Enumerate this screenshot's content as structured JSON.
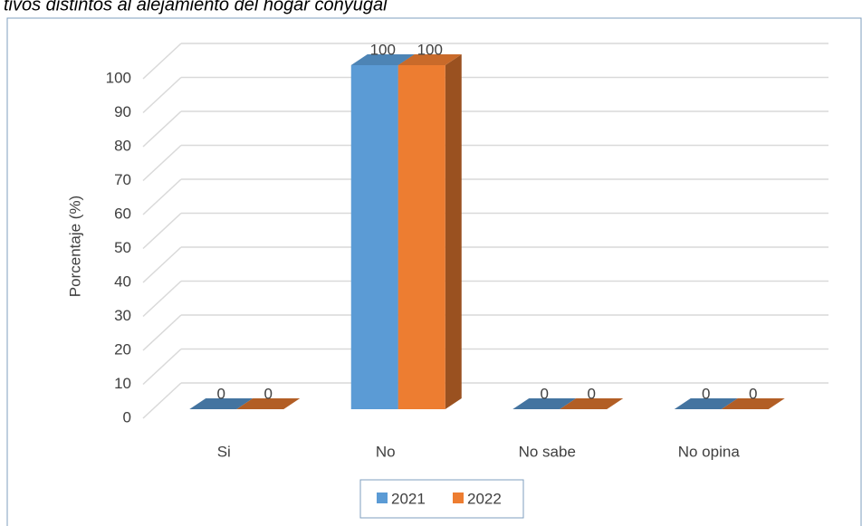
{
  "chart_data": {
    "type": "bar3d",
    "title": "tivos distintos al alejamiento del hogar conyugal",
    "y_label": "Porcentaje (%)",
    "categories": [
      "Si",
      "No",
      "No sabe",
      "No opina"
    ],
    "series": [
      {
        "name": "2021",
        "color": "#5b9bd5",
        "values": [
          0,
          100,
          0,
          0
        ]
      },
      {
        "name": "2022",
        "color": "#ed7d31",
        "values": [
          0,
          100,
          0,
          0
        ]
      }
    ],
    "ylim": [
      0,
      100
    ],
    "yticks": [
      0,
      10,
      20,
      30,
      40,
      50,
      60,
      70,
      80,
      90,
      100
    ],
    "grid": true,
    "legend": "bottom"
  }
}
